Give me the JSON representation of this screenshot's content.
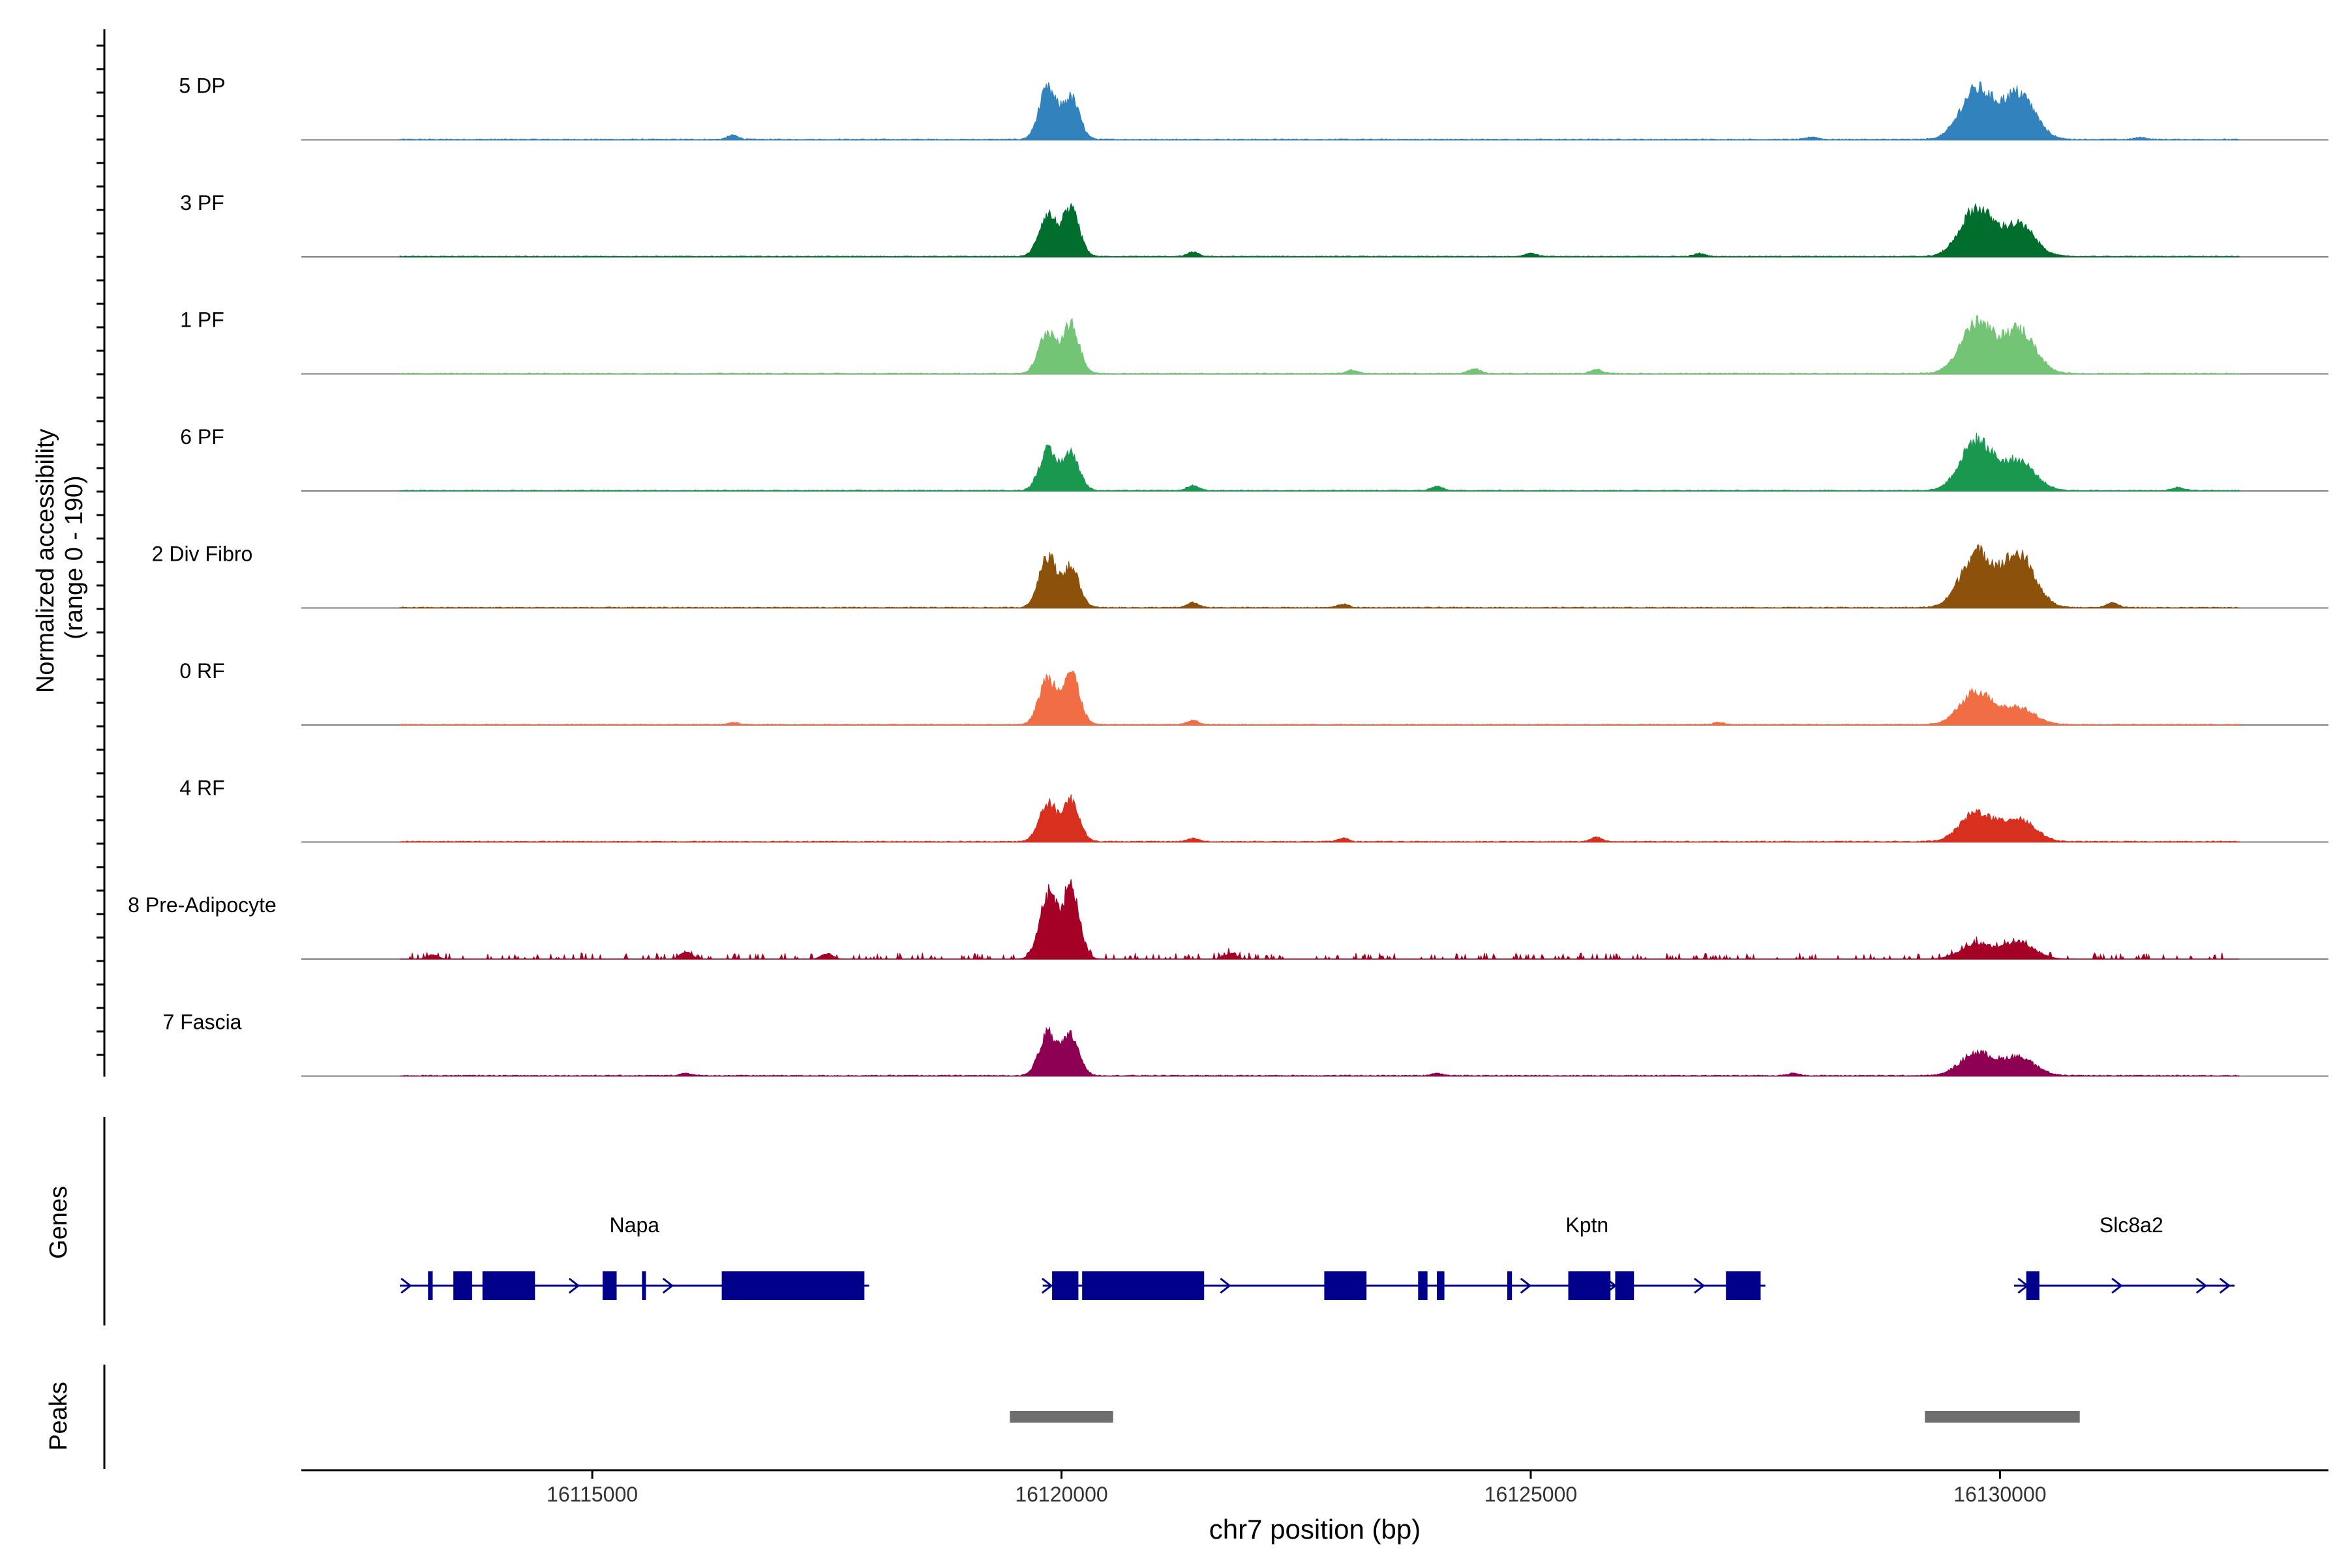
{
  "chart_data": {
    "type": "area",
    "title": "",
    "xlabel": "chr7 position (bp)",
    "ylabel_line1": "Normalized accessibility",
    "ylabel_line2": "(range 0 - 190)",
    "xlim": [
      16111900,
      16133500
    ],
    "yrange": [
      0,
      190
    ],
    "x_ticks": [
      16115000,
      16120000,
      16125000,
      16130000
    ],
    "x_tick_labels": [
      "16115000",
      "16120000",
      "16125000",
      "16130000"
    ],
    "coverage_range_bp": [
      16112950,
      16132550
    ],
    "track_labels": {
      "genes": "Genes",
      "peaks": "Peaks"
    },
    "peak_centers": [
      16119850,
      16120100,
      16129750,
      16130200
    ],
    "series": [
      {
        "name": "5 DP",
        "color": "#3182bd",
        "peaks": [
          [
            16119850,
            120,
            90
          ],
          [
            16120100,
            100,
            90
          ],
          [
            16129750,
            120,
            170
          ],
          [
            16130200,
            110,
            170
          ]
        ],
        "bumps": [
          [
            16116500,
            10
          ],
          [
            16128000,
            6
          ],
          [
            16131500,
            5
          ]
        ]
      },
      {
        "name": "3 PF",
        "color": "#006d2c",
        "peaks": [
          [
            16119850,
            100,
            90
          ],
          [
            16120100,
            110,
            90
          ],
          [
            16129750,
            115,
            170
          ],
          [
            16130200,
            75,
            170
          ]
        ],
        "bumps": [
          [
            16121400,
            10
          ],
          [
            16125000,
            8
          ],
          [
            16126800,
            7
          ]
        ]
      },
      {
        "name": "1 PF",
        "color": "#74c476",
        "peaks": [
          [
            16119850,
            100,
            90
          ],
          [
            16120100,
            115,
            90
          ],
          [
            16129750,
            120,
            170
          ],
          [
            16130200,
            105,
            170
          ]
        ],
        "bumps": [
          [
            16124400,
            12
          ],
          [
            16125700,
            10
          ],
          [
            16123100,
            8
          ]
        ]
      },
      {
        "name": "6 PF",
        "color": "#1a9850",
        "peaks": [
          [
            16119850,
            95,
            90
          ],
          [
            16120100,
            90,
            90
          ],
          [
            16129750,
            120,
            170
          ],
          [
            16130200,
            70,
            170
          ]
        ],
        "bumps": [
          [
            16121400,
            12
          ],
          [
            16124000,
            10
          ],
          [
            16131900,
            8
          ]
        ]
      },
      {
        "name": "2 Div Fibro",
        "color": "#8c510a",
        "peaks": [
          [
            16119850,
            125,
            90
          ],
          [
            16120100,
            95,
            90
          ],
          [
            16129750,
            130,
            170
          ],
          [
            16130200,
            125,
            170
          ]
        ],
        "bumps": [
          [
            16121400,
            12
          ],
          [
            16123000,
            8
          ],
          [
            16131200,
            12
          ]
        ]
      },
      {
        "name": "0 RF",
        "color": "#f16d43",
        "peaks": [
          [
            16119850,
            110,
            90
          ],
          [
            16120100,
            125,
            90
          ],
          [
            16129750,
            80,
            170
          ],
          [
            16130200,
            40,
            170
          ]
        ],
        "bumps": [
          [
            16121400,
            10
          ],
          [
            16116500,
            5
          ],
          [
            16127000,
            5
          ]
        ]
      },
      {
        "name": "4 RF",
        "color": "#d7301f",
        "peaks": [
          [
            16119850,
            90,
            90
          ],
          [
            16120100,
            100,
            90
          ],
          [
            16129750,
            70,
            170
          ],
          [
            16130200,
            55,
            170
          ]
        ],
        "bumps": [
          [
            16125700,
            10
          ],
          [
            16123000,
            8
          ],
          [
            16121400,
            8
          ]
        ]
      },
      {
        "name": "8 Pre-Adipocyte",
        "color": "#a50026",
        "peaks": [
          [
            16119850,
            150,
            90
          ],
          [
            16120100,
            170,
            90
          ],
          [
            16129750,
            35,
            170
          ],
          [
            16130200,
            40,
            170
          ]
        ],
        "bumps": [
          [
            16116000,
            18
          ],
          [
            16117500,
            14
          ],
          [
            16121800,
            14
          ],
          [
            16113300,
            10
          ]
        ]
      },
      {
        "name": "7 Fascia",
        "color": "#8e0152",
        "peaks": [
          [
            16119850,
            100,
            90
          ],
          [
            16120100,
            95,
            90
          ],
          [
            16129750,
            55,
            170
          ],
          [
            16130200,
            45,
            170
          ]
        ],
        "bumps": [
          [
            16116000,
            6
          ],
          [
            16124000,
            6
          ],
          [
            16127800,
            6
          ]
        ]
      }
    ],
    "genes": [
      {
        "name": "Napa",
        "label_x": 16115450,
        "row": "upper",
        "line": [
          16112950,
          16117950
        ],
        "exons": [
          [
            16113250,
            16113300
          ],
          [
            16113520,
            16113720
          ],
          [
            16113830,
            16114390
          ],
          [
            16115110,
            16115260
          ],
          [
            16115530,
            16115560
          ],
          [
            16116380,
            16117900
          ]
        ],
        "arrows": [
          16113020,
          16114810,
          16115810
        ]
      },
      {
        "name": "Kptn",
        "label_x": 16125600,
        "row": "upper",
        "line": [
          16119800,
          16127500
        ],
        "exons": [
          [
            16119900,
            16120180
          ],
          [
            16120220,
            16121520
          ],
          [
            16122800,
            16123250
          ],
          [
            16123800,
            16123900
          ],
          [
            16124000,
            16124080
          ],
          [
            16124750,
            16124800
          ],
          [
            16125400,
            16125850
          ],
          [
            16125900,
            16126100
          ],
          [
            16127080,
            16127450
          ]
        ],
        "arrows": [
          16119850,
          16121750,
          16124950,
          16125860,
          16126800
        ]
      },
      {
        "name": "Slc8a2",
        "label_x": 16131400,
        "row": "upper",
        "line": [
          16130150,
          16132500
        ],
        "exons": [
          [
            16130280,
            16130420
          ]
        ],
        "arrows": [
          16130250,
          16131250,
          16132150,
          16132400
        ]
      }
    ],
    "peaks_track": [
      [
        16119450,
        16120550
      ],
      [
        16129200,
        16130850
      ]
    ]
  }
}
